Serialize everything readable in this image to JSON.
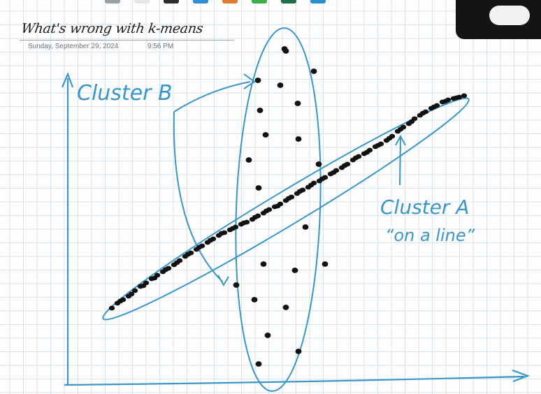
{
  "note": {
    "title": "What's wrong with k-means",
    "date": "Sunday, September 29, 2024",
    "time": "9:56 PM"
  },
  "annotations": {
    "cluster_b": "Cluster B",
    "cluster_a_line1": "Cluster A",
    "cluster_a_line2": "“on a line”"
  },
  "colors": {
    "ink_blue": "#3a95c8",
    "ink_black": "#111111",
    "grid": "#d7e3ec",
    "toolbar_pens": [
      "#9aa0a6",
      "#e8e8e8",
      "#2c2c2c",
      "#2f8fd6",
      "#e07a2f",
      "#3fae49",
      "#1f6f4a",
      "#2c8fd0"
    ]
  },
  "chart_data": {
    "type": "scatter",
    "title": "",
    "xlabel": "",
    "ylabel": "",
    "series": [
      {
        "name": "Cluster A",
        "points": [
          [
            160,
            441
          ],
          [
            168,
            434
          ],
          [
            176,
            429
          ],
          [
            184,
            424
          ],
          [
            193,
            416
          ],
          [
            201,
            410
          ],
          [
            209,
            405
          ],
          [
            217,
            399
          ],
          [
            225,
            394
          ],
          [
            233,
            389
          ],
          [
            241,
            384
          ],
          [
            249,
            379
          ],
          [
            257,
            373
          ],
          [
            265,
            367
          ],
          [
            273,
            362
          ],
          [
            281,
            357
          ],
          [
            289,
            352
          ],
          [
            297,
            347
          ],
          [
            305,
            342
          ],
          [
            313,
            337
          ],
          [
            321,
            333
          ],
          [
            329,
            329
          ],
          [
            337,
            325
          ],
          [
            345,
            321
          ],
          [
            353,
            318
          ],
          [
            361,
            314
          ],
          [
            369,
            309
          ],
          [
            377,
            305
          ],
          [
            385,
            300
          ],
          [
            393,
            296
          ],
          [
            401,
            292
          ],
          [
            409,
            287
          ],
          [
            417,
            282
          ],
          [
            425,
            277
          ],
          [
            433,
            272
          ],
          [
            441,
            268
          ],
          [
            449,
            262
          ],
          [
            457,
            259
          ],
          [
            465,
            254
          ],
          [
            473,
            249
          ],
          [
            481,
            244
          ],
          [
            489,
            240
          ],
          [
            497,
            235
          ],
          [
            505,
            229
          ],
          [
            513,
            224
          ],
          [
            521,
            220
          ],
          [
            529,
            215
          ],
          [
            537,
            210
          ],
          [
            545,
            206
          ],
          [
            553,
            201
          ],
          [
            561,
            195
          ],
          [
            569,
            188
          ],
          [
            577,
            182
          ],
          [
            585,
            177
          ],
          [
            593,
            170
          ],
          [
            601,
            165
          ],
          [
            609,
            160
          ],
          [
            617,
            155
          ],
          [
            625,
            151
          ],
          [
            633,
            146
          ],
          [
            641,
            143
          ],
          [
            649,
            141
          ],
          [
            657,
            139
          ],
          [
            664,
            137
          ],
          [
            172,
            431
          ],
          [
            188,
            421
          ],
          [
            205,
            409
          ],
          [
            221,
            398
          ],
          [
            237,
            386
          ],
          [
            253,
            376
          ],
          [
            269,
            364
          ],
          [
            285,
            354
          ],
          [
            301,
            344
          ],
          [
            317,
            334
          ],
          [
            333,
            327
          ],
          [
            349,
            319
          ],
          [
            365,
            311
          ],
          [
            381,
            302
          ],
          [
            397,
            295
          ],
          [
            413,
            284
          ],
          [
            429,
            274
          ],
          [
            445,
            265
          ],
          [
            461,
            256
          ],
          [
            477,
            247
          ],
          [
            493,
            237
          ],
          [
            509,
            226
          ],
          [
            525,
            218
          ],
          [
            541,
            208
          ],
          [
            557,
            198
          ],
          [
            573,
            185
          ],
          [
            589,
            174
          ],
          [
            605,
            162
          ],
          [
            621,
            153
          ],
          [
            637,
            145
          ],
          [
            653,
            140
          ]
        ]
      },
      {
        "name": "Cluster B",
        "points": [
          [
            407,
            70
          ],
          [
            409,
            73
          ],
          [
            449,
            102
          ],
          [
            369,
            115
          ],
          [
            401,
            122
          ],
          [
            372,
            158
          ],
          [
            426,
            148
          ],
          [
            380,
            193
          ],
          [
            427,
            199
          ],
          [
            356,
            229
          ],
          [
            456,
            235
          ],
          [
            370,
            269
          ],
          [
            437,
            325
          ],
          [
            377,
            378
          ],
          [
            422,
            387
          ],
          [
            465,
            378
          ],
          [
            338,
            408
          ],
          [
            364,
            429
          ],
          [
            409,
            440
          ],
          [
            383,
            480
          ],
          [
            427,
            503
          ],
          [
            370,
            521
          ]
        ]
      }
    ]
  }
}
